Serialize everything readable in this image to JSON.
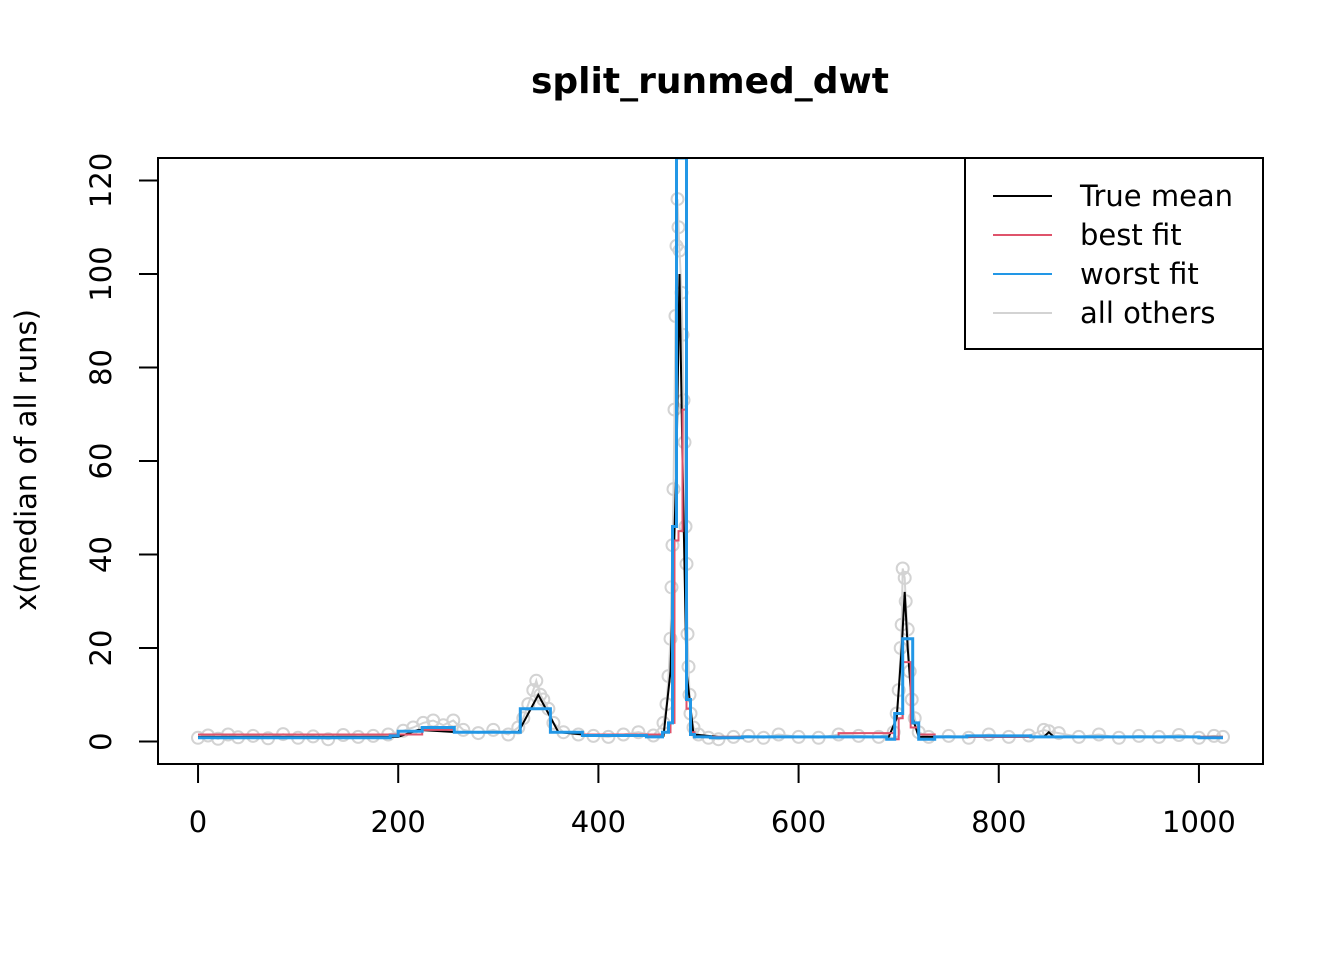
{
  "chart_data": {
    "type": "line",
    "title": "split_runmed_dwt",
    "xlabel": "",
    "ylabel": "x(median of all runs)",
    "xlim": [
      -40,
      1064
    ],
    "ylim": [
      -4.8,
      124.8
    ],
    "xticks": [
      0,
      200,
      400,
      600,
      800,
      1000
    ],
    "yticks": [
      0,
      20,
      40,
      60,
      80,
      100,
      120
    ],
    "xtick_labels": [
      "0",
      "200",
      "400",
      "600",
      "800",
      "1000"
    ],
    "ytick_labels": [
      "0",
      "20",
      "40",
      "60",
      "80",
      "100",
      "120"
    ],
    "grid": false,
    "legend": {
      "position": "top-right",
      "entries": [
        {
          "label": "True mean",
          "color": "#000000"
        },
        {
          "label": "best fit",
          "color": "#DF536B"
        },
        {
          "label": "worst fit",
          "color": "#2297E6"
        },
        {
          "label": "all others",
          "color": "#D3D3D3"
        }
      ]
    },
    "series": [
      {
        "name": "True mean",
        "color": "#000000",
        "style": "line",
        "points": [
          [
            0,
            1
          ],
          [
            100,
            1
          ],
          [
            200,
            1
          ],
          [
            220,
            2.5
          ],
          [
            260,
            2
          ],
          [
            320,
            2
          ],
          [
            330,
            6
          ],
          [
            340,
            10
          ],
          [
            350,
            6
          ],
          [
            360,
            2
          ],
          [
            400,
            1.2
          ],
          [
            465,
            1.2
          ],
          [
            472,
            15
          ],
          [
            478,
            60
          ],
          [
            481,
            100
          ],
          [
            484,
            60
          ],
          [
            488,
            15
          ],
          [
            495,
            1.5
          ],
          [
            520,
            1
          ],
          [
            600,
            1
          ],
          [
            690,
            1
          ],
          [
            698,
            5
          ],
          [
            703,
            20
          ],
          [
            706,
            32
          ],
          [
            709,
            20
          ],
          [
            714,
            5
          ],
          [
            720,
            1
          ],
          [
            800,
            1
          ],
          [
            845,
            1
          ],
          [
            850,
            2
          ],
          [
            855,
            1
          ],
          [
            1024,
            1
          ]
        ]
      },
      {
        "name": "best fit",
        "color": "#DF536B",
        "style": "step",
        "points": [
          [
            0,
            1.5
          ],
          [
            128,
            1.5
          ],
          [
            192,
            1.5
          ],
          [
            224,
            2.5
          ],
          [
            256,
            2
          ],
          [
            320,
            2
          ],
          [
            322,
            7
          ],
          [
            352,
            2
          ],
          [
            384,
            1.5
          ],
          [
            448,
            1.5
          ],
          [
            464,
            2
          ],
          [
            472,
            4
          ],
          [
            476,
            43
          ],
          [
            480,
            45
          ],
          [
            484,
            71
          ],
          [
            488,
            7
          ],
          [
            492,
            2
          ],
          [
            496,
            1
          ],
          [
            640,
            1
          ],
          [
            640,
            1.8
          ],
          [
            688,
            1.8
          ],
          [
            696,
            0.5
          ],
          [
            700,
            5
          ],
          [
            704,
            17
          ],
          [
            708,
            17
          ],
          [
            712,
            3
          ],
          [
            720,
            1.5
          ],
          [
            736,
            1
          ],
          [
            800,
            1
          ],
          [
            896,
            1
          ],
          [
            1024,
            1
          ]
        ]
      },
      {
        "name": "worst fit",
        "color": "#2297E6",
        "style": "step",
        "points": [
          [
            0,
            0.8
          ],
          [
            128,
            0.8
          ],
          [
            192,
            1.2
          ],
          [
            200,
            2.2
          ],
          [
            224,
            3
          ],
          [
            256,
            2
          ],
          [
            320,
            2
          ],
          [
            322,
            7
          ],
          [
            352,
            2
          ],
          [
            384,
            1.3
          ],
          [
            448,
            1
          ],
          [
            464,
            2
          ],
          [
            470,
            4
          ],
          [
            474,
            46
          ],
          [
            478,
            124.8
          ],
          [
            486,
            124.8
          ],
          [
            488,
            9
          ],
          [
            492,
            1.5
          ],
          [
            496,
            1
          ],
          [
            512,
            0.8
          ],
          [
            544,
            1
          ],
          [
            640,
            1
          ],
          [
            688,
            0.5
          ],
          [
            696,
            6
          ],
          [
            704,
            22
          ],
          [
            710,
            22
          ],
          [
            714,
            4
          ],
          [
            720,
            0.5
          ],
          [
            736,
            1
          ],
          [
            768,
            1.2
          ],
          [
            832,
            1
          ],
          [
            960,
            1
          ],
          [
            1000,
            0.8
          ],
          [
            1024,
            0.8
          ]
        ]
      },
      {
        "name": "all others",
        "color": "#D3D3D3",
        "style": "points",
        "points": [
          [
            0,
            0.8
          ],
          [
            10,
            1.3
          ],
          [
            20,
            0.6
          ],
          [
            30,
            1.5
          ],
          [
            40,
            0.9
          ],
          [
            55,
            1.2
          ],
          [
            70,
            0.7
          ],
          [
            85,
            1.6
          ],
          [
            100,
            0.8
          ],
          [
            115,
            1.1
          ],
          [
            130,
            0.5
          ],
          [
            145,
            1.4
          ],
          [
            160,
            1
          ],
          [
            175,
            1.2
          ],
          [
            190,
            1.5
          ],
          [
            205,
            2.3
          ],
          [
            215,
            3
          ],
          [
            225,
            4
          ],
          [
            235,
            4.5
          ],
          [
            245,
            3.5
          ],
          [
            255,
            4.5
          ],
          [
            265,
            2.5
          ],
          [
            280,
            1.8
          ],
          [
            295,
            2.5
          ],
          [
            310,
            1.5
          ],
          [
            320,
            3
          ],
          [
            325,
            5
          ],
          [
            330,
            8
          ],
          [
            335,
            11
          ],
          [
            338,
            13
          ],
          [
            342,
            10
          ],
          [
            345,
            9
          ],
          [
            350,
            7
          ],
          [
            355,
            4
          ],
          [
            365,
            2
          ],
          [
            380,
            1.5
          ],
          [
            395,
            1.2
          ],
          [
            410,
            1
          ],
          [
            425,
            1.5
          ],
          [
            440,
            2
          ],
          [
            455,
            1.3
          ],
          [
            465,
            4
          ],
          [
            468,
            8
          ],
          [
            470,
            14
          ],
          [
            472,
            22
          ],
          [
            473,
            33
          ],
          [
            474,
            42
          ],
          [
            475,
            54
          ],
          [
            476,
            71
          ],
          [
            477,
            91
          ],
          [
            478,
            106
          ],
          [
            479,
            116
          ],
          [
            480,
            110
          ],
          [
            481,
            105
          ],
          [
            483,
            96
          ],
          [
            484,
            87
          ],
          [
            485,
            73
          ],
          [
            486,
            64
          ],
          [
            487,
            46
          ],
          [
            488,
            38
          ],
          [
            489,
            23
          ],
          [
            490,
            16
          ],
          [
            491,
            10
          ],
          [
            492,
            6
          ],
          [
            495,
            3
          ],
          [
            500,
            1.5
          ],
          [
            510,
            0.8
          ],
          [
            520,
            0.5
          ],
          [
            535,
            1
          ],
          [
            550,
            1.2
          ],
          [
            565,
            0.8
          ],
          [
            580,
            1.5
          ],
          [
            600,
            1
          ],
          [
            620,
            0.8
          ],
          [
            640,
            1.5
          ],
          [
            660,
            1.2
          ],
          [
            680,
            1
          ],
          [
            695,
            2
          ],
          [
            698,
            6
          ],
          [
            700,
            11
          ],
          [
            702,
            20
          ],
          [
            703,
            25
          ],
          [
            704,
            37
          ],
          [
            706,
            35
          ],
          [
            707,
            30
          ],
          [
            709,
            24
          ],
          [
            711,
            15
          ],
          [
            713,
            9
          ],
          [
            716,
            5
          ],
          [
            720,
            2
          ],
          [
            730,
            1
          ],
          [
            750,
            1.2
          ],
          [
            770,
            0.8
          ],
          [
            790,
            1.5
          ],
          [
            810,
            1
          ],
          [
            830,
            1.3
          ],
          [
            845,
            2.5
          ],
          [
            850,
            2.2
          ],
          [
            860,
            1.8
          ],
          [
            880,
            1
          ],
          [
            900,
            1.5
          ],
          [
            920,
            0.8
          ],
          [
            940,
            1.2
          ],
          [
            960,
            1
          ],
          [
            980,
            1.4
          ],
          [
            1000,
            0.8
          ],
          [
            1015,
            1.2
          ],
          [
            1024,
            1
          ]
        ]
      }
    ]
  }
}
